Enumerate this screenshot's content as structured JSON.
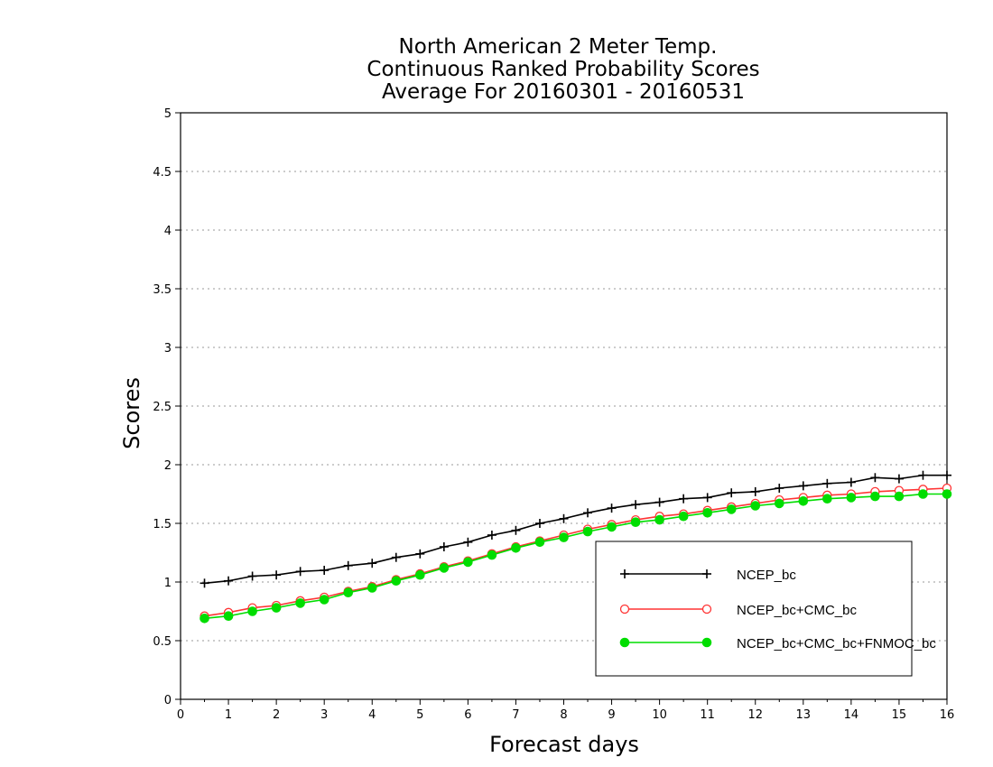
{
  "chart_data": {
    "type": "line",
    "title_lines": [
      "North American 2 Meter Temp.",
      "Continuous Ranked Probability Scores",
      "Average For 20160301 - 20160531"
    ],
    "xlabel": "Forecast days",
    "ylabel": "Scores",
    "xlim": [
      0,
      16
    ],
    "ylim": [
      0,
      5
    ],
    "xticks": [
      "0",
      "1",
      "2",
      "3",
      "4",
      "5",
      "6",
      "7",
      "8",
      "9",
      "10",
      "11",
      "12",
      "13",
      "14",
      "15",
      "16"
    ],
    "yticks": [
      "0",
      "0.5",
      "1",
      "1.5",
      "2",
      "2.5",
      "3",
      "3.5",
      "4",
      "4.5",
      "5"
    ],
    "grid": "horizontal dotted",
    "legend_position": "bottom-right",
    "x": [
      0.5,
      1,
      1.5,
      2,
      2.5,
      3,
      3.5,
      4,
      4.5,
      5,
      5.5,
      6,
      6.5,
      7,
      7.5,
      8,
      8.5,
      9,
      9.5,
      10,
      10.5,
      11,
      11.5,
      12,
      12.5,
      13,
      13.5,
      14,
      14.5,
      15,
      15.5,
      16
    ],
    "series": [
      {
        "name": "NCEP_bc",
        "color": "#000000",
        "marker": "plus",
        "values": [
          0.99,
          1.01,
          1.05,
          1.06,
          1.09,
          1.1,
          1.14,
          1.16,
          1.21,
          1.24,
          1.3,
          1.34,
          1.4,
          1.44,
          1.5,
          1.54,
          1.59,
          1.63,
          1.66,
          1.68,
          1.71,
          1.72,
          1.76,
          1.77,
          1.8,
          1.82,
          1.84,
          1.85,
          1.89,
          1.88,
          1.91,
          1.91
        ]
      },
      {
        "name": "NCEP_bc+CMC_bc",
        "color": "#ff3333",
        "marker": "open-circle",
        "values": [
          0.71,
          0.74,
          0.78,
          0.8,
          0.84,
          0.87,
          0.92,
          0.96,
          1.02,
          1.07,
          1.13,
          1.18,
          1.24,
          1.3,
          1.35,
          1.4,
          1.45,
          1.49,
          1.53,
          1.56,
          1.58,
          1.61,
          1.64,
          1.67,
          1.7,
          1.72,
          1.74,
          1.75,
          1.77,
          1.78,
          1.79,
          1.8
        ]
      },
      {
        "name": "NCEP_bc+CMC_bc+FNMOC_bc",
        "color": "#00dd00",
        "marker": "filled-circle",
        "values": [
          0.69,
          0.71,
          0.75,
          0.78,
          0.82,
          0.85,
          0.91,
          0.95,
          1.01,
          1.06,
          1.12,
          1.17,
          1.23,
          1.29,
          1.34,
          1.38,
          1.43,
          1.47,
          1.51,
          1.53,
          1.56,
          1.59,
          1.62,
          1.65,
          1.67,
          1.69,
          1.71,
          1.72,
          1.73,
          1.73,
          1.75,
          1.75
        ]
      }
    ]
  }
}
